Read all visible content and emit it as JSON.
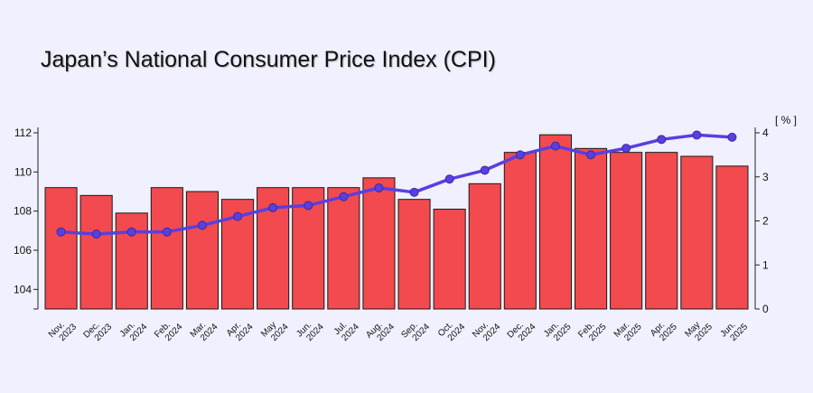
{
  "title": "Japan’s National Consumer Price Index (CPI)",
  "chart_data": {
    "type": "bar",
    "title": "Japan’s National Consumer Price Index (CPI)",
    "categories": [
      [
        "Nov.",
        "2023"
      ],
      [
        "Dec.",
        "2023"
      ],
      [
        "Jan.",
        "2024"
      ],
      [
        "Feb.",
        "2024"
      ],
      [
        "Mar.",
        "2024"
      ],
      [
        "Apr.",
        "2024"
      ],
      [
        "May",
        "2024"
      ],
      [
        "Jun.",
        "2024"
      ],
      [
        "Jul.",
        "2024"
      ],
      [
        "Aug.",
        "2024"
      ],
      [
        "Sep.",
        "2024"
      ],
      [
        "Oct.",
        "2024"
      ],
      [
        "Nov.",
        "2024"
      ],
      [
        "Dec.",
        "2024"
      ],
      [
        "Jan.",
        "2025"
      ],
      [
        "Feb.",
        "2025"
      ],
      [
        "Mar.",
        "2025"
      ],
      [
        "Apr.",
        "2025"
      ],
      [
        "May",
        "2025"
      ],
      [
        "Jun.",
        "2025"
      ]
    ],
    "series": [
      {
        "type": "bar",
        "axis": "left",
        "color": "#f24a4e",
        "values": [
          109.2,
          108.8,
          107.9,
          109.2,
          109.0,
          108.6,
          109.2,
          109.2,
          109.2,
          109.7,
          108.6,
          108.1,
          109.4,
          111.0,
          111.9,
          111.2,
          111.0,
          111.0,
          110.8,
          110.3
        ]
      },
      {
        "type": "line",
        "axis": "right",
        "color": "#5a3fe0",
        "values": [
          1.75,
          1.7,
          1.75,
          1.75,
          1.9,
          2.1,
          2.3,
          2.35,
          2.55,
          2.75,
          2.65,
          2.95,
          3.15,
          3.5,
          3.7,
          3.5,
          3.65,
          3.85,
          3.95,
          3.9
        ]
      }
    ],
    "left_axis": {
      "ylim": [
        103,
        112
      ],
      "ticks": [
        104,
        106,
        108,
        110,
        112
      ]
    },
    "right_axis": {
      "label": "[ % ]",
      "ylim": [
        0,
        4
      ],
      "ticks": [
        0,
        1,
        2,
        3,
        4
      ]
    },
    "grid": false,
    "legend": "none"
  }
}
